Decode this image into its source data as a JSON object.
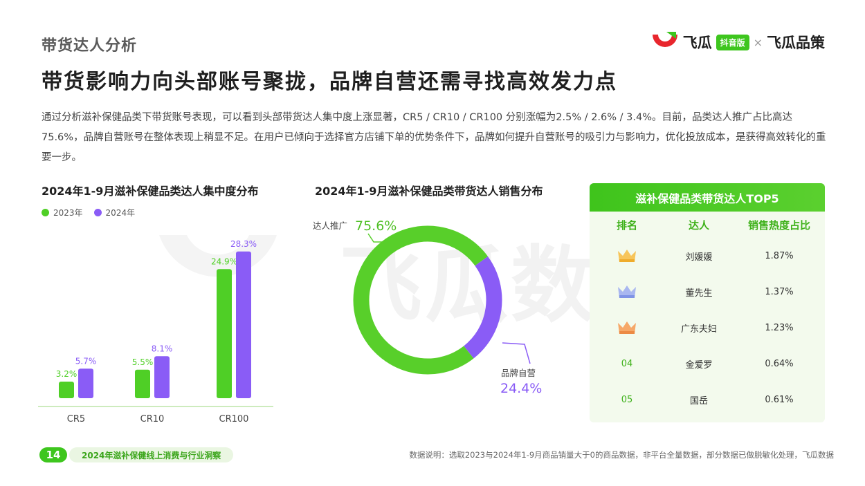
{
  "header": {
    "section_title": "带货达人分析",
    "main_title": "带货影响力向头部账号聚拢，品牌自营还需寻找高效发力点",
    "intro": "通过分析滋补保健品类下带货账号表现，可以看到头部带货达人集中度上涨显著，CR5 / CR10 / CR100 分别涨幅为2.5% / 2.6% / 3.4%。目前，品类达人推广占比高达75.6%，品牌自营账号在整体表现上稍显不足。在用户已倾向于选择官方店铺下单的优势条件下，品牌如何提升自营账号的吸引力与影响力，优化投放成本，是获得高效转化的重要一步。"
  },
  "brand": {
    "name1": "飞瓜",
    "tag": "抖音版",
    "x": "×",
    "name2": "飞瓜品策"
  },
  "watermark": "飞瓜数据",
  "colors": {
    "green": "#4fcf26",
    "purple": "#8a5cf6",
    "green_dark": "#3fb11b"
  },
  "chart_data": [
    {
      "type": "bar",
      "title": "2024年1-9月滋补保健品类达人集中度分布",
      "categories": [
        "CR5",
        "CR10",
        "CR100"
      ],
      "series": [
        {
          "name": "2023年",
          "values": [
            3.2,
            5.5,
            24.9
          ],
          "labels": [
            "3.2%",
            "5.5%",
            "24.9%"
          ],
          "color": "#4fcf26"
        },
        {
          "name": "2024年",
          "values": [
            5.7,
            8.1,
            28.3
          ],
          "labels": [
            "5.7%",
            "8.1%",
            "28.3%"
          ],
          "color": "#8a5cf6"
        }
      ],
      "ylim": [
        0,
        30
      ],
      "grid": false,
      "legend": "top-left"
    },
    {
      "type": "pie",
      "title": "2024年1-9月滋补保健品类带货达人销售分布",
      "slices": [
        {
          "label": "达人推广",
          "value": 75.6,
          "display": "75.6%",
          "color": "#58cf2a"
        },
        {
          "label": "品牌自营",
          "value": 24.4,
          "display": "24.4%",
          "color": "#8a5cf6"
        }
      ]
    }
  ],
  "top5": {
    "title": "滋补保健品类带货达人TOP5",
    "columns": [
      "排名",
      "达人",
      "销售热度占比"
    ],
    "rows": [
      {
        "rank": "1",
        "icon": "gold-crown-icon",
        "name": "刘媛媛",
        "share": "1.87%"
      },
      {
        "rank": "2",
        "icon": "silver-crown-icon",
        "name": "董先生",
        "share": "1.37%"
      },
      {
        "rank": "3",
        "icon": "bronze-crown-icon",
        "name": "广东夫妇",
        "share": "1.23%"
      },
      {
        "rank": "04",
        "icon": "",
        "name": "金爱罗",
        "share": "0.64%"
      },
      {
        "rank": "05",
        "icon": "",
        "name": "国岳",
        "share": "0.61%"
      }
    ]
  },
  "footer": {
    "page": "14",
    "report": "2024年滋补保健线上消费与行业洞察",
    "note": "数据说明：选取2023与2024年1-9月商品销量大于0的商品数据，非平台全量数据，部分数据已做脱敏化处理，飞瓜数据"
  }
}
